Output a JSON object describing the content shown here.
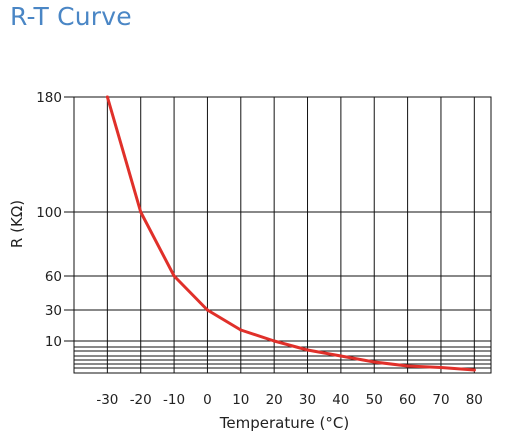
{
  "title": "R-T Curve",
  "chart_data": {
    "type": "line",
    "xlabel": "Temperature (°C)",
    "ylabel": "R (KΩ)",
    "x_ticks": [
      -30,
      -20,
      -10,
      0,
      10,
      20,
      30,
      40,
      50,
      60,
      70,
      80
    ],
    "y_ticks": [
      {
        "value": 180,
        "label": "180"
      },
      {
        "value": 100,
        "label": "100"
      },
      {
        "value": 60,
        "label": "60"
      },
      {
        "value": 30,
        "label": "30"
      },
      {
        "value": 10,
        "label": "10"
      }
    ],
    "y_minor_gridlines": [
      7,
      5,
      4,
      3,
      2,
      1
    ],
    "xlim": [
      -40,
      85
    ],
    "grid": true,
    "line_color": "#e0302a",
    "series": [
      {
        "x": [
          -30,
          -20,
          -10,
          0,
          10,
          20,
          30,
          40,
          50,
          60,
          70,
          80
        ],
        "y": [
          180,
          100,
          60,
          30,
          16,
          10,
          6,
          4,
          2.5,
          1.8,
          1.2,
          0.9
        ]
      }
    ]
  }
}
